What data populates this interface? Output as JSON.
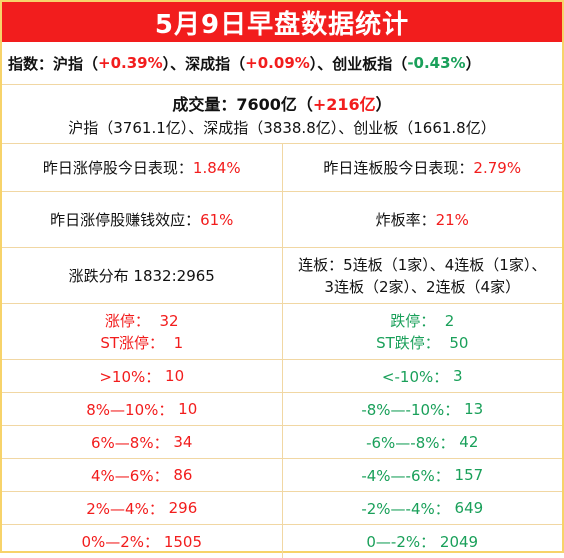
{
  "title": "5月9日早盘数据统计",
  "indices": {
    "prefix": "指数：",
    "sh_label": "沪指（",
    "sh_val": "+0.39%",
    "sh_close": "）、",
    "sz_label": "深成指（",
    "sz_val": "+0.09%",
    "sz_close": "）、",
    "cy_label": "创业板指（",
    "cy_val": "-0.43%",
    "cy_close": "）"
  },
  "volume": {
    "label": "成交量：7600亿（",
    "change": "+216亿",
    "close": "）",
    "detail": "沪指（3761.1亿）、深成指（3838.8亿）、创业板（1661.8亿）"
  },
  "stats": {
    "prev_limit_up_label": "昨日涨停股今日表现：",
    "prev_limit_up_value": "1.84%",
    "prev_consec_label": "昨日连板股今日表现：",
    "prev_consec_value": "2.79%",
    "money_effect_label": "昨日涨停股赚钱效应：",
    "money_effect_value": "61%",
    "broken_label": "炸板率：",
    "broken_value": "21%",
    "distribution": "涨跌分布 1832:2965",
    "consec_line1": "连板：5连板（1家）、4连板（1家）、",
    "consec_line2": "3连板（2家）、2连板（4家）"
  },
  "limits": {
    "up_label": "涨停：",
    "up_value": "32",
    "st_up_label": "ST涨停：",
    "st_up_value": "1",
    "down_label": "跌停：",
    "down_value": "2",
    "st_down_label": "ST跌停：",
    "st_down_value": "50"
  },
  "ranges": [
    {
      "left": ">10%：",
      "left_val": "10",
      "right": "<-10%：",
      "right_val": "3"
    },
    {
      "left": "8%—10%：",
      "left_val": "10",
      "right": "-8%—-10%：",
      "right_val": "13"
    },
    {
      "left": "6%—8%：",
      "left_val": "34",
      "right": "-6%—-8%：",
      "right_val": "42"
    },
    {
      "left": "4%—6%：",
      "left_val": "86",
      "right": "-4%—-6%：",
      "right_val": "157"
    },
    {
      "left": "2%—4%：",
      "left_val": "296",
      "right": "-2%—-4%：",
      "right_val": "649"
    },
    {
      "left": "0%—2%：",
      "left_val": "1505",
      "right": "0—-2%：",
      "right_val": "2049"
    }
  ],
  "colors": {
    "accent_red": "#f21d1d",
    "accent_green": "#1aa05a",
    "border": "#f1d7a3"
  }
}
